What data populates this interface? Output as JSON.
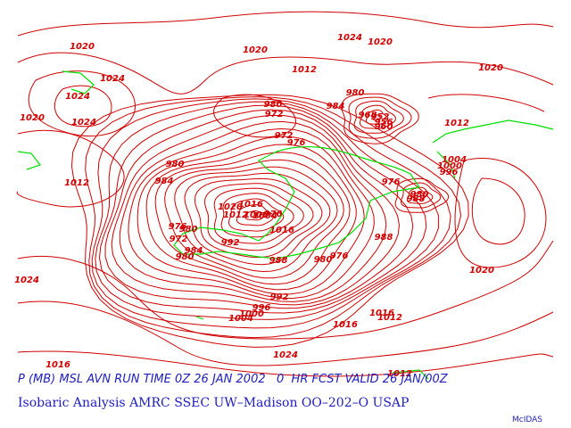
{
  "map": {
    "contour_labels": [
      "1020",
      "1024",
      "1024",
      "1020",
      "1024",
      "1020",
      "1024",
      "1020",
      "1012",
      "1020",
      "980",
      "980",
      "972",
      "984",
      "968",
      "952",
      "956",
      "960",
      "1012",
      "972",
      "976",
      "1004",
      "1000",
      "996",
      "980",
      "984",
      "1012",
      "976",
      "980",
      "988",
      "1020",
      "1016",
      "1012",
      "1008",
      "1004",
      "976",
      "1016",
      "976",
      "980",
      "972",
      "992",
      "988",
      "984",
      "980",
      "988",
      "980",
      "976",
      "1024",
      "1020",
      "992",
      "996",
      "1000",
      "1004",
      "1016",
      "1012",
      "1016",
      "1024",
      "1016",
      "1012"
    ],
    "caption_line1": "P (MB) MSL AVN RUN TIME 0Z 26 JAN 2002   0  HR FCST VALID 26 JAN/00Z",
    "caption_line2": "Isobaric Analysis AMRC SSEC UW–Madison OO–202–O USAP",
    "credit": "McIDAS"
  }
}
